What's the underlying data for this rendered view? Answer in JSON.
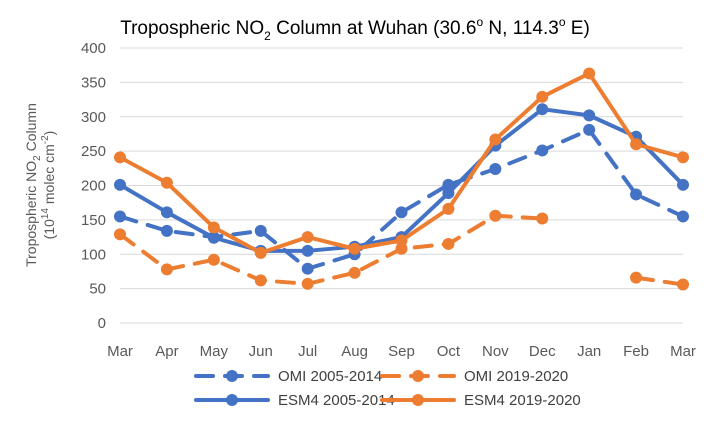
{
  "chart_data": {
    "type": "line",
    "title": {
      "prefix": "Tropospheric NO",
      "sub": "2",
      "middle": " Column at Wuhan (30.6",
      "deg1": "o",
      "mid2": " N, 114.3",
      "deg2": "o",
      "suffix": " E)"
    },
    "ylabel": {
      "line1_prefix": "Tropospheric NO",
      "line1_sub": "2",
      "line1_suffix": " Column",
      "line2_prefix": "(10",
      "line2_sup": "14",
      "line2_mid": " molec cm",
      "line2_sup2": "-2",
      "line2_suffix": ")"
    },
    "categories": [
      "Mar",
      "Apr",
      "May",
      "Jun",
      "Jul",
      "Aug",
      "Sep",
      "Oct",
      "Nov",
      "Dec",
      "Jan",
      "Feb",
      "Mar"
    ],
    "ylim": [
      0,
      400
    ],
    "yticks": [
      0,
      50,
      100,
      150,
      200,
      250,
      300,
      350,
      400
    ],
    "grid": true,
    "legend_position": "bottom",
    "series": [
      {
        "name": "OMI 2005-2014",
        "color": "#4472C4",
        "dashed": true,
        "values": [
          155,
          134,
          125,
          134,
          79,
          100,
          161,
          201,
          224,
          251,
          281,
          187,
          155
        ]
      },
      {
        "name": "OMI 2019-2020",
        "color": "#ED7D31",
        "dashed": true,
        "values": [
          129,
          78,
          92,
          62,
          57,
          73,
          108,
          115,
          156,
          152,
          null,
          66,
          56
        ]
      },
      {
        "name": "ESM4 2005-2014",
        "color": "#4472C4",
        "dashed": false,
        "values": [
          201,
          161,
          124,
          105,
          105,
          111,
          125,
          189,
          258,
          311,
          302,
          271,
          201
        ]
      },
      {
        "name": "ESM4 2019-2020",
        "color": "#ED7D31",
        "dashed": false,
        "values": [
          241,
          204,
          139,
          102,
          125,
          108,
          120,
          166,
          267,
          329,
          363,
          260,
          241
        ]
      }
    ]
  }
}
